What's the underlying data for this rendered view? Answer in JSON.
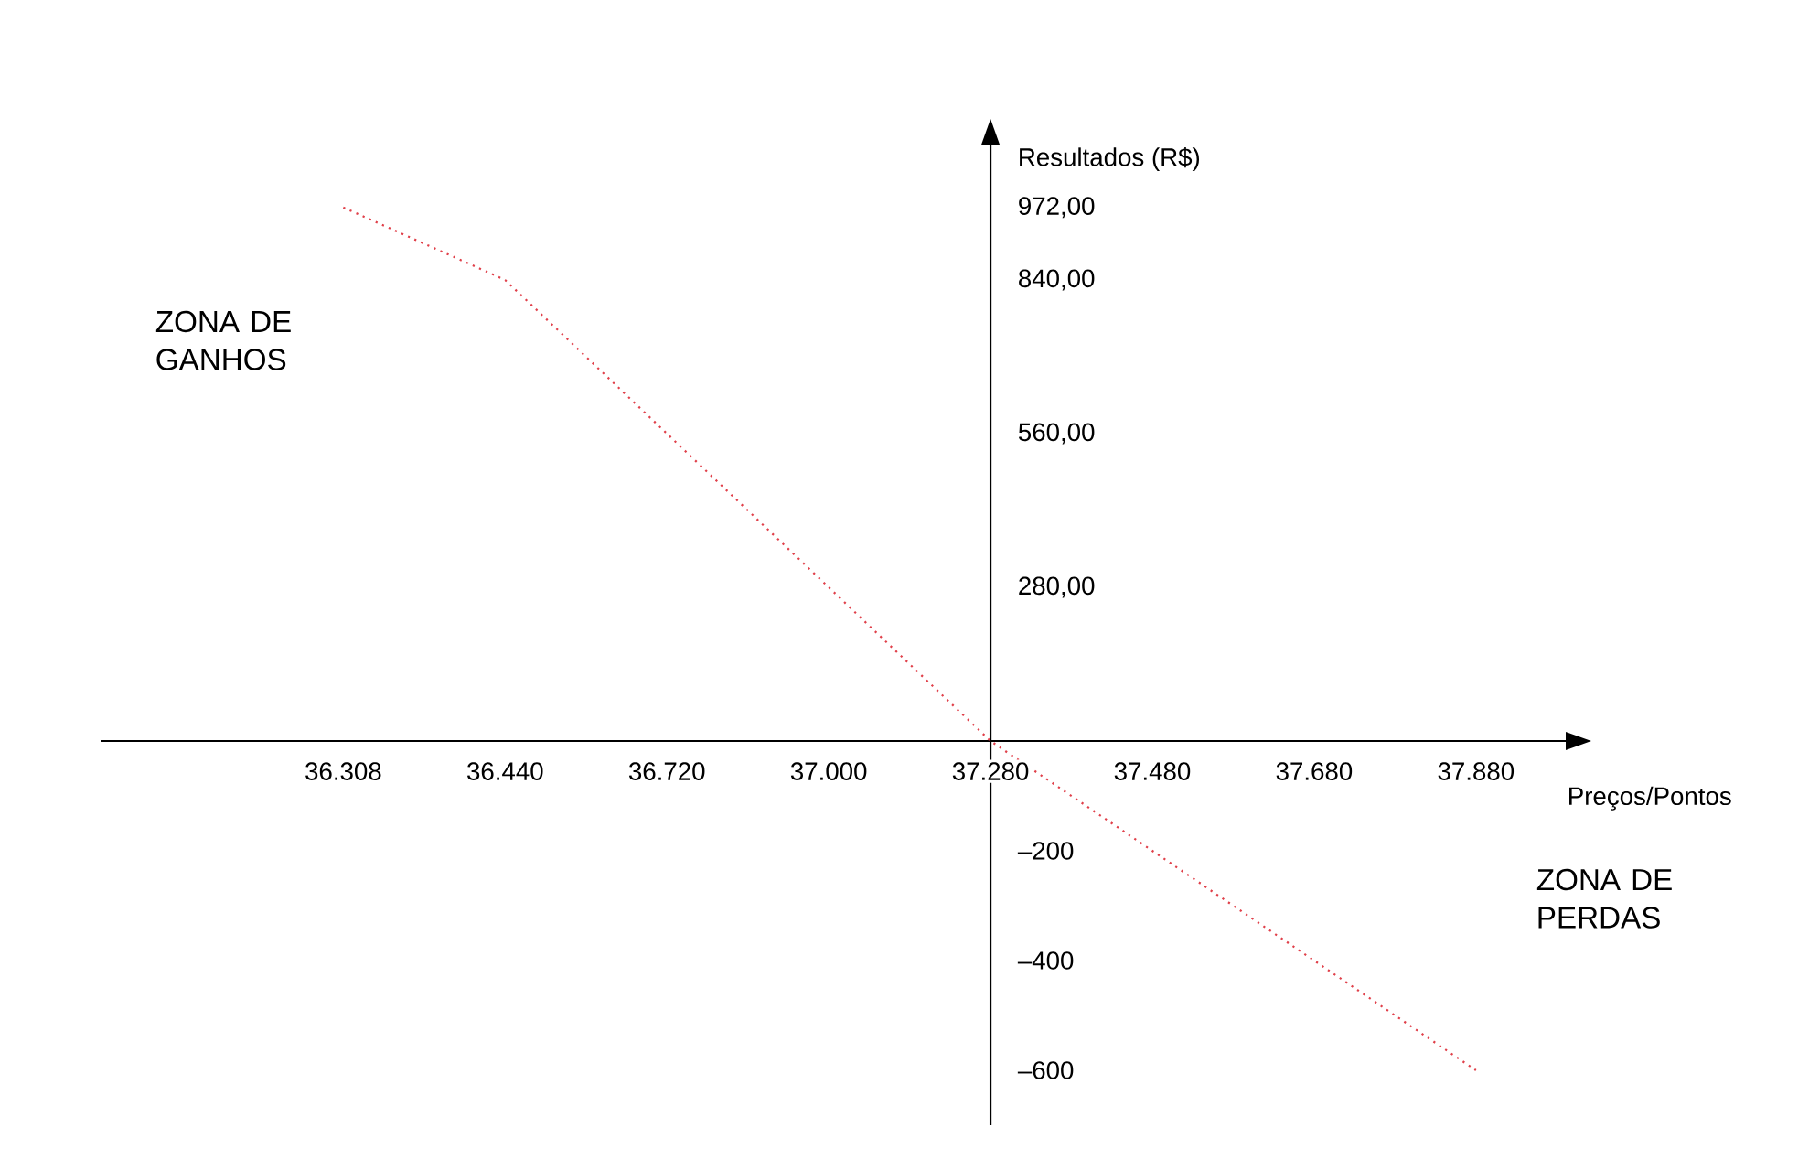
{
  "chart_data": {
    "type": "line",
    "xlabel": "Preços/Pontos",
    "ylabel": "Resultados (R$)",
    "categories": [
      "36.308",
      "36.440",
      "36.720",
      "37.000",
      "37.280",
      "37.480",
      "37.680",
      "37.880"
    ],
    "values": [
      972,
      840,
      560,
      280,
      0,
      -200,
      -400,
      -600
    ],
    "color": "#e0404a",
    "line_style": "dotted",
    "ylim": [
      -700,
      1100
    ],
    "yticks": [
      {
        "value": 972,
        "label": "972,00"
      },
      {
        "value": 840,
        "label": "840,00"
      },
      {
        "value": 560,
        "label": "560,00"
      },
      {
        "value": 280,
        "label": "280,00"
      },
      {
        "value": -200,
        "label": "–200"
      },
      {
        "value": -400,
        "label": "–400"
      },
      {
        "value": -600,
        "label": "–600"
      }
    ],
    "annotations": [
      "ZONA DE GANHOS",
      "ZONA DE PERDAS"
    ]
  }
}
